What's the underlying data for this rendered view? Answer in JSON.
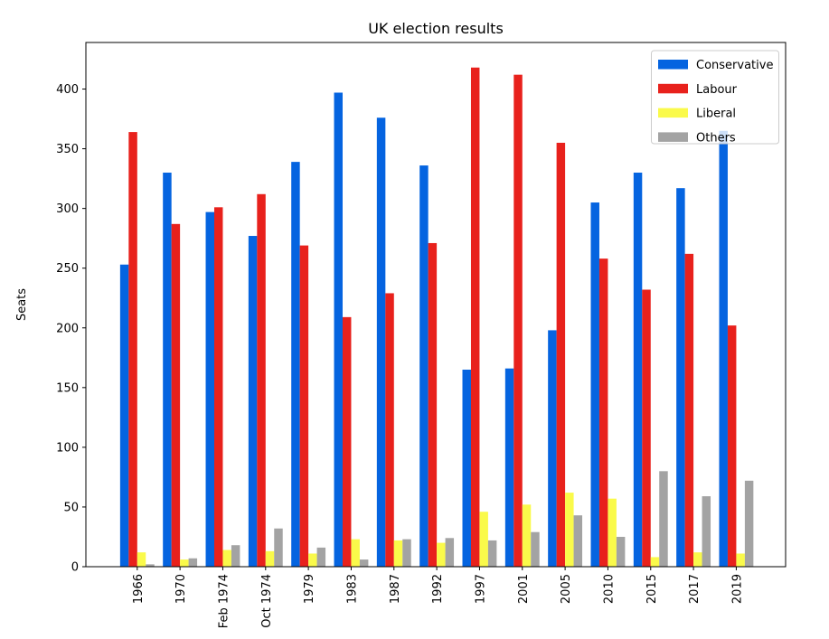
{
  "figure": {
    "background": "#ffffff"
  },
  "chart_data": {
    "type": "bar",
    "title": "UK election results",
    "xlabel": "",
    "ylabel": "Seats",
    "categories": [
      "1966",
      "1970",
      "Feb 1974",
      "Oct 1974",
      "1979",
      "1983",
      "1987",
      "1992",
      "1997",
      "2001",
      "2005",
      "2010",
      "2015",
      "2017",
      "2019"
    ],
    "series": [
      {
        "name": "Conservative",
        "color": "#0564e0",
        "values": [
          253,
          330,
          297,
          277,
          339,
          397,
          376,
          336,
          165,
          166,
          198,
          305,
          330,
          317,
          365
        ]
      },
      {
        "name": "Labour",
        "color": "#e8211c",
        "values": [
          364,
          287,
          301,
          312,
          269,
          209,
          229,
          271,
          418,
          412,
          355,
          258,
          232,
          262,
          202
        ]
      },
      {
        "name": "Liberal",
        "color": "#fafa4a",
        "values": [
          12,
          6,
          14,
          13,
          11,
          23,
          22,
          20,
          46,
          52,
          62,
          57,
          8,
          12,
          11
        ]
      },
      {
        "name": "Others",
        "color": "#a3a3a3",
        "values": [
          2,
          7,
          18,
          32,
          16,
          6,
          23,
          24,
          22,
          29,
          43,
          25,
          80,
          59,
          72
        ]
      }
    ],
    "ylim": [
      0,
      439
    ],
    "yticks": [
      0,
      50,
      100,
      150,
      200,
      250,
      300,
      350,
      400
    ],
    "grid": false,
    "legend_position": "upper right",
    "x_tick_rotation": 90,
    "bar_group_fraction": 0.8,
    "axis_color": "#000000",
    "legend_border_color": "#cccccc"
  }
}
